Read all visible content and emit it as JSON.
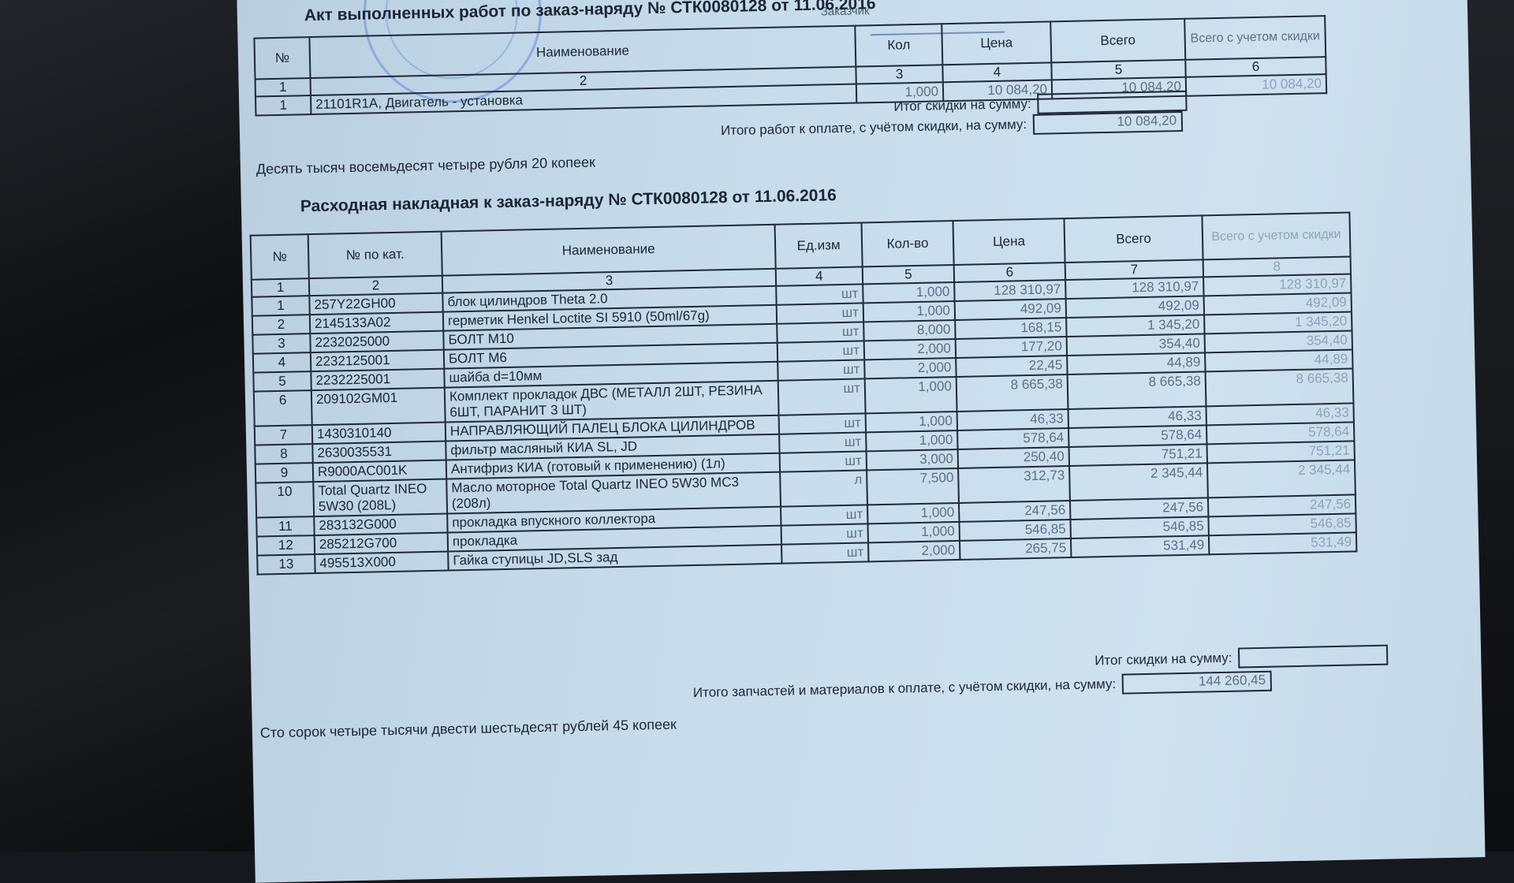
{
  "header": {
    "customer_label": "Заказчик"
  },
  "act": {
    "title": "Акт выполненных работ по заказ-наряду №  СТК0080128 от 11.06.2016",
    "columns": [
      "№",
      "Наименование",
      "Кол",
      "Цена",
      "Всего",
      "Всего с учетом скидки"
    ],
    "column_index": [
      "1",
      "2",
      "3",
      "4",
      "5",
      "6"
    ],
    "rows": [
      {
        "n": "1",
        "name": "21101R1A, Двигатель - установка",
        "qty": "1,000",
        "price": "10 084,20",
        "total": "10 084,20",
        "total_discount": "10 084,20"
      }
    ],
    "discount_label": "Итог скидки на сумму:",
    "discount_value": "",
    "pay_label": "Итого работ к оплате, с учётом скидки, на сумму:",
    "pay_value": "10 084,20",
    "amount_words": "Десять тысяч восемьдесят четыре рубля 20 копеек"
  },
  "invoice": {
    "title": "Расходная накладная к заказ-наряду №  СТК0080128 от 11.06.2016",
    "columns": [
      "№",
      "№ по кат.",
      "Наименование",
      "Ед.изм",
      "Кол-во",
      "Цена",
      "Всего",
      "Всего с учетом скидки"
    ],
    "column_index": [
      "1",
      "2",
      "3",
      "4",
      "5",
      "6",
      "7",
      "8"
    ],
    "rows": [
      {
        "n": "1",
        "cat": "257Y22GH00",
        "name": "блок цилиндров Theta 2.0",
        "unit": "шт",
        "qty": "1,000",
        "price": "128 310,97",
        "total": "128 310,97",
        "total_discount": "128 310,97"
      },
      {
        "n": "2",
        "cat": "2145133A02",
        "name": "герметик Henkel Loctite SI 5910 (50ml/67g)",
        "unit": "шт",
        "qty": "1,000",
        "price": "492,09",
        "total": "492,09",
        "total_discount": "492,09"
      },
      {
        "n": "3",
        "cat": "2232025000",
        "name": "БОЛТ М10",
        "unit": "шт",
        "qty": "8,000",
        "price": "168,15",
        "total": "1 345,20",
        "total_discount": "1 345,20"
      },
      {
        "n": "4",
        "cat": "2232125001",
        "name": "БОЛТ М6",
        "unit": "шт",
        "qty": "2,000",
        "price": "177,20",
        "total": "354,40",
        "total_discount": "354,40"
      },
      {
        "n": "5",
        "cat": "2232225001",
        "name": "шайба d=10мм",
        "unit": "шт",
        "qty": "2,000",
        "price": "22,45",
        "total": "44,89",
        "total_discount": "44,89"
      },
      {
        "n": "6",
        "cat": "209102GM01",
        "name": "Комплект прокладок ДВС (МЕТАЛЛ 2ШТ, РЕЗИНА 6ШТ, ПАРАНИТ 3 ШТ)",
        "unit": "шт",
        "qty": "1,000",
        "price": "8 665,38",
        "total": "8 665,38",
        "total_discount": "8 665,38"
      },
      {
        "n": "7",
        "cat": "1430310140",
        "name": "НАПРАВЛЯЮЩИЙ ПАЛЕЦ БЛОКА ЦИЛИНДРОВ",
        "unit": "шт",
        "qty": "1,000",
        "price": "46,33",
        "total": "46,33",
        "total_discount": "46,33"
      },
      {
        "n": "8",
        "cat": "2630035531",
        "name": "фильтр масляный КИА SL, JD",
        "unit": "шт",
        "qty": "1,000",
        "price": "578,64",
        "total": "578,64",
        "total_discount": "578,64"
      },
      {
        "n": "9",
        "cat": "R9000AC001K",
        "name": "Антифриз КИА (готовый к применению) (1л)",
        "unit": "шт",
        "qty": "3,000",
        "price": "250,40",
        "total": "751,21",
        "total_discount": "751,21"
      },
      {
        "n": "10",
        "cat": "Total Quartz INEO 5W30 (208L)",
        "name": "Масло моторное Total Quartz INEO 5W30 MC3 (208л)",
        "unit": "л",
        "qty": "7,500",
        "price": "312,73",
        "total": "2 345,44",
        "total_discount": "2 345,44"
      },
      {
        "n": "11",
        "cat": "283132G000",
        "name": "прокладка впускного коллектора",
        "unit": "шт",
        "qty": "1,000",
        "price": "247,56",
        "total": "247,56",
        "total_discount": "247,56"
      },
      {
        "n": "12",
        "cat": "285212G700",
        "name": "прокладка",
        "unit": "шт",
        "qty": "1,000",
        "price": "546,85",
        "total": "546,85",
        "total_discount": "546,85"
      },
      {
        "n": "13",
        "cat": "495513X000",
        "name": "Гайка ступицы JD,SLS зад",
        "unit": "шт",
        "qty": "2,000",
        "price": "265,75",
        "total": "531,49",
        "total_discount": "531,49"
      }
    ],
    "discount_label": "Итог скидки на сумму:",
    "discount_value": "",
    "pay_label": "Итого запчастей и материалов к оплате, с учётом скидки, на сумму:",
    "pay_value": "144 260,45",
    "amount_words": "Сто сорок четыре тысячи двести шестьдесят рублей 45 копеек"
  }
}
